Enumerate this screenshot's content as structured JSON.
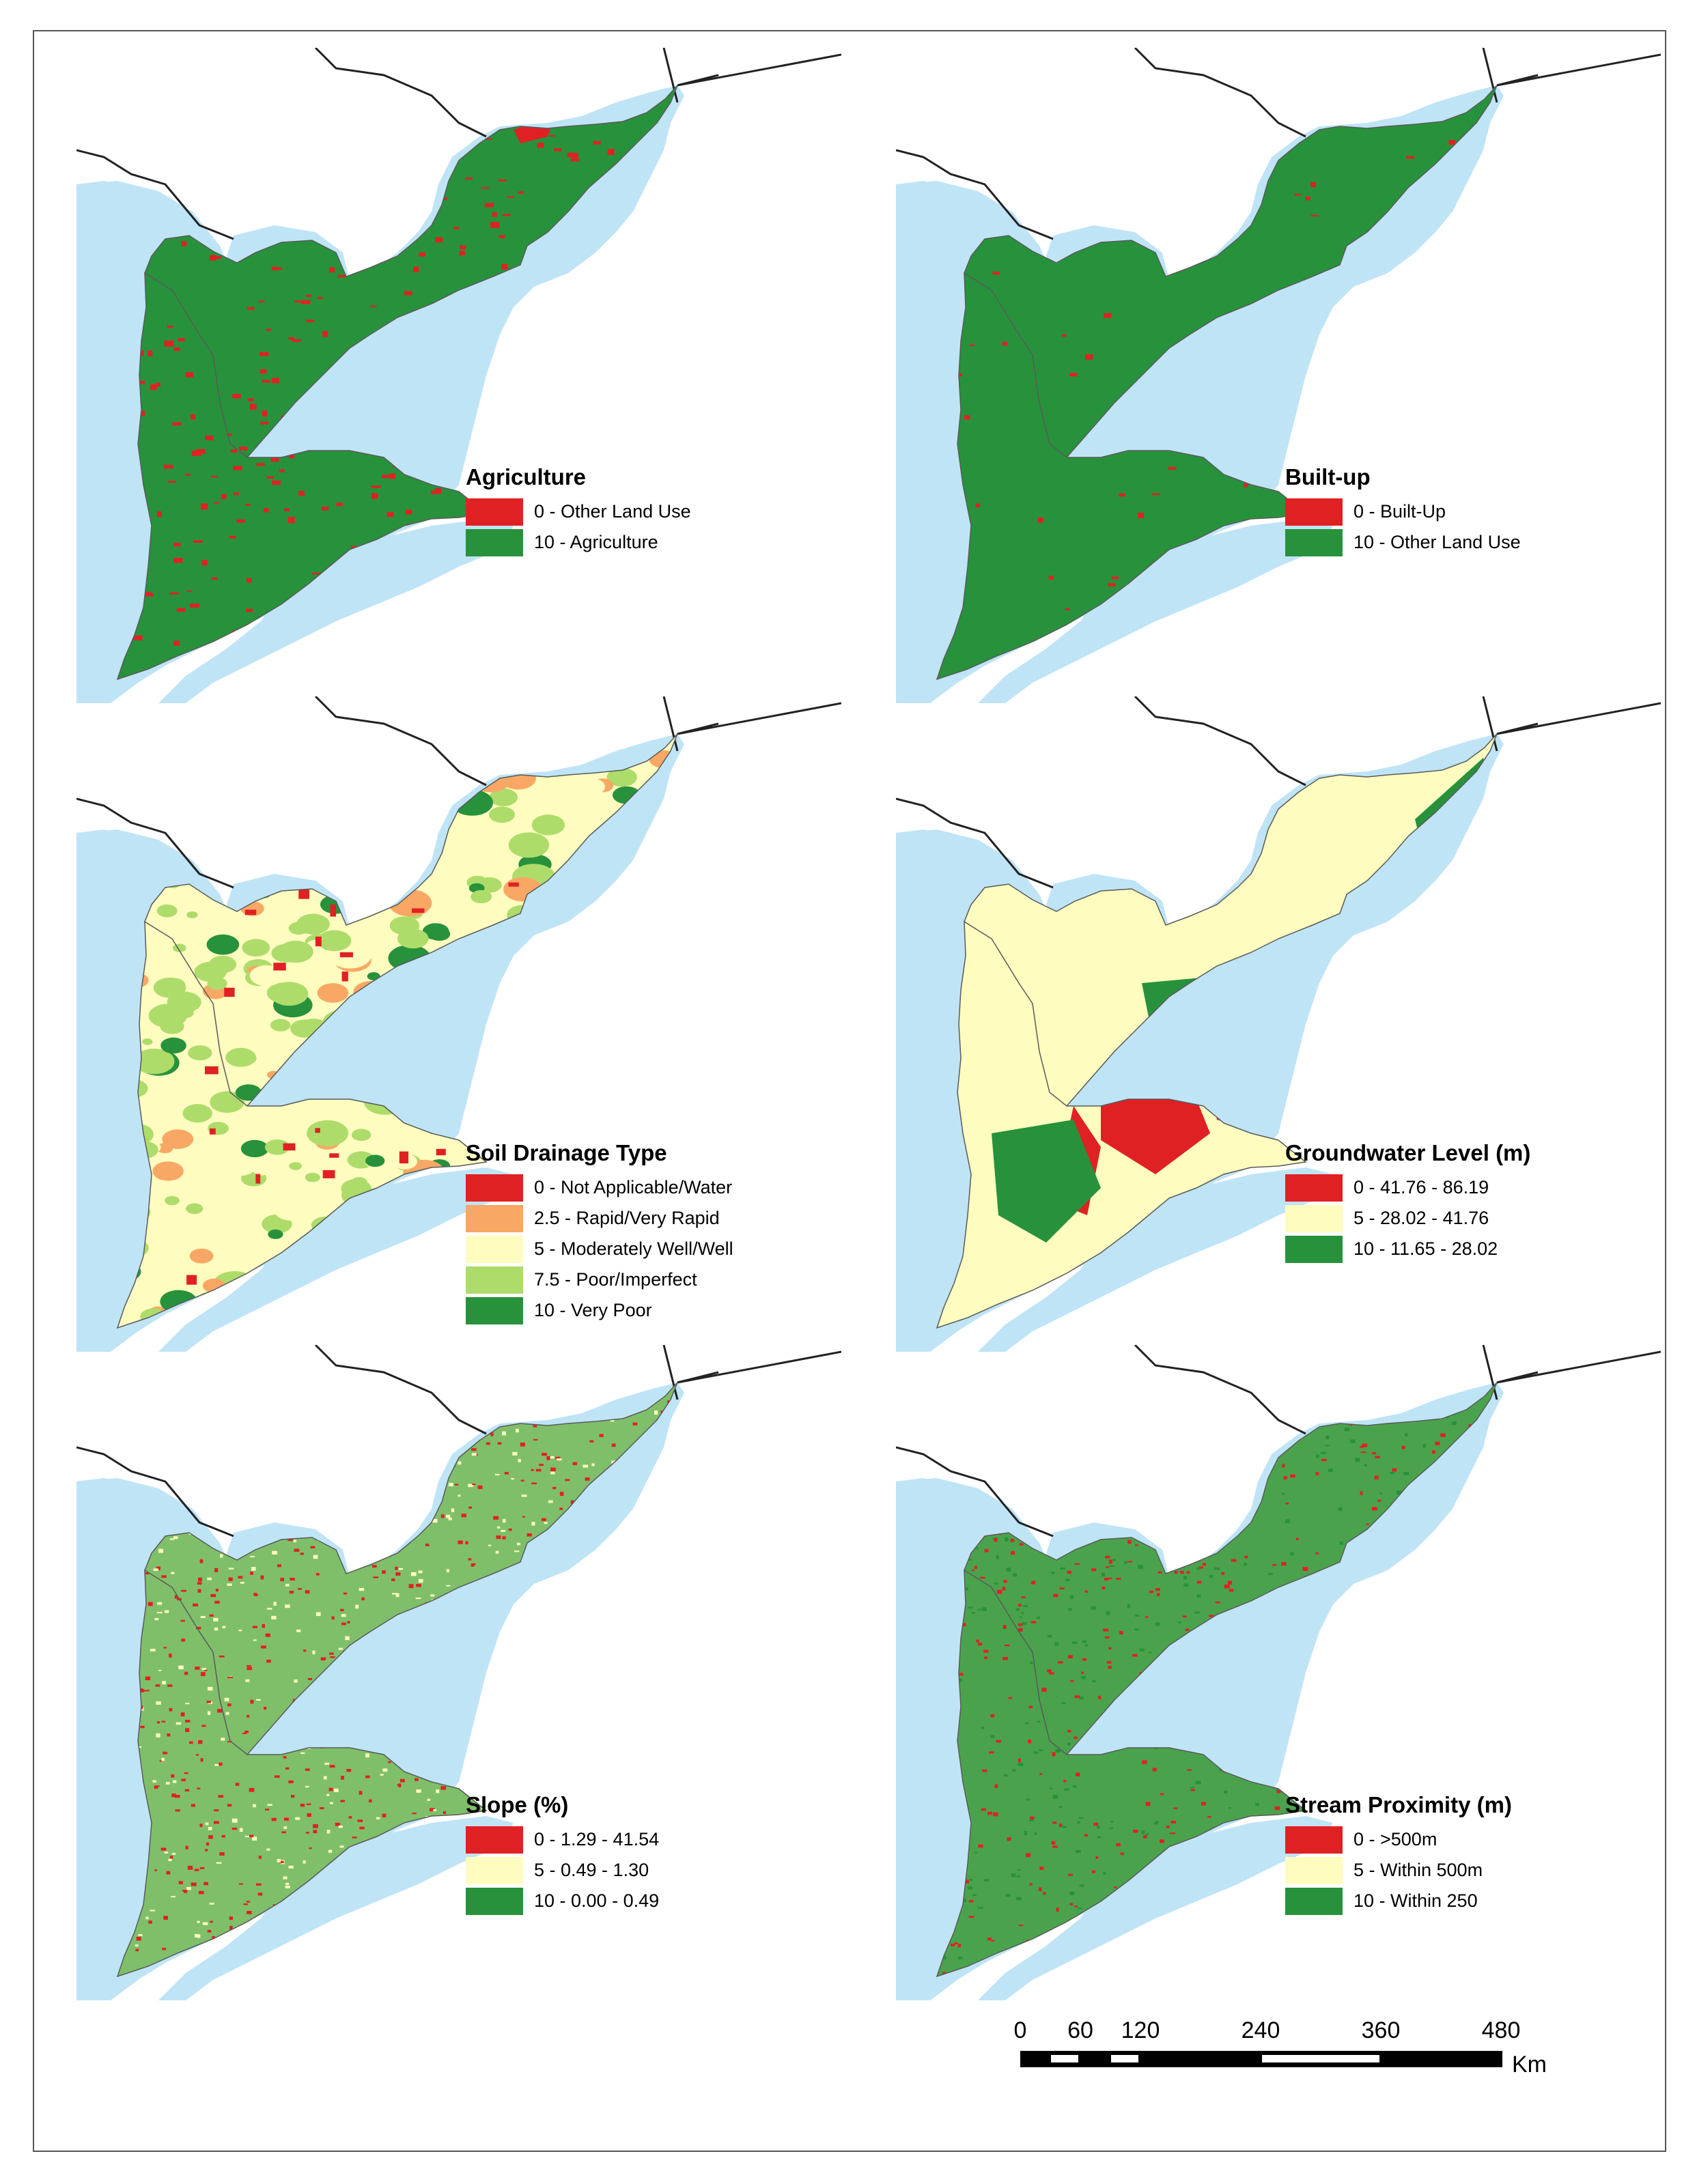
{
  "colors": {
    "water": "#bfe4f6",
    "red": "#e02124",
    "green": "#27923b",
    "light_yellow": "#fefcbf",
    "orange": "#f8a864",
    "light_green": "#aedc6b",
    "outline": "#222222"
  },
  "panels": [
    {
      "id": "agriculture",
      "title": "Agriculture",
      "fill_style": "agri",
      "legend": [
        {
          "label": "0 - Other Land Use",
          "color": "#e02124"
        },
        {
          "label": "10 - Agriculture",
          "color": "#27923b"
        }
      ]
    },
    {
      "id": "built-up",
      "title": "Built-up",
      "fill_style": "built",
      "legend": [
        {
          "label": "0 - Built-Up",
          "color": "#e02124"
        },
        {
          "label": "10 - Other Land Use",
          "color": "#27923b"
        }
      ]
    },
    {
      "id": "soil-drainage",
      "title": "Soil Drainage Type",
      "fill_style": "soil",
      "legend": [
        {
          "label": "0 - Not Applicable/Water",
          "color": "#e02124"
        },
        {
          "label": "2.5 - Rapid/Very Rapid",
          "color": "#f8a864"
        },
        {
          "label": "5 - Moderately Well/Well",
          "color": "#fefcbf"
        },
        {
          "label": "7.5 - Poor/Imperfect",
          "color": "#aedc6b"
        },
        {
          "label": "10 - Very Poor",
          "color": "#27923b"
        }
      ]
    },
    {
      "id": "groundwater",
      "title": "Groundwater Level (m)",
      "fill_style": "ground",
      "legend": [
        {
          "label": "0 - 41.76 - 86.19",
          "color": "#e02124"
        },
        {
          "label": "5 - 28.02 - 41.76",
          "color": "#fefcbf"
        },
        {
          "label": "10 - 11.65 - 28.02",
          "color": "#27923b"
        }
      ]
    },
    {
      "id": "slope",
      "title": "Slope (%)",
      "fill_style": "slope",
      "legend": [
        {
          "label": "0 - 1.29 - 41.54",
          "color": "#e02124"
        },
        {
          "label": "5 - 0.49 - 1.30",
          "color": "#fefcbf"
        },
        {
          "label": "10 - 0.00 - 0.49",
          "color": "#27923b"
        }
      ]
    },
    {
      "id": "stream-proximity",
      "title": "Stream Proximity (m)",
      "fill_style": "stream",
      "legend": [
        {
          "label": "0 - >500m",
          "color": "#e02124"
        },
        {
          "label": "5 - Within 500m",
          "color": "#fefcbf"
        },
        {
          "label": "10 - Within 250",
          "color": "#27923b"
        }
      ]
    }
  ],
  "scale_bar": {
    "ticks": [
      "0",
      "60",
      "120",
      "240",
      "360",
      "480"
    ],
    "tick_values": [
      0,
      60,
      120,
      240,
      360,
      480
    ],
    "unit": "Km"
  }
}
